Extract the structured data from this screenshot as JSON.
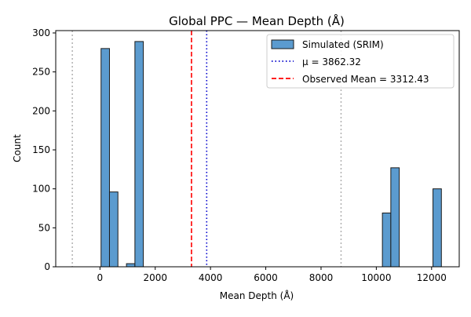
{
  "chart_data": {
    "type": "bar",
    "title": "Global PPC — Mean Depth (Å)",
    "xlabel": "Mean Depth (Å)",
    "ylabel": "Count",
    "xlim": [
      -1600,
      13000
    ],
    "ylim": [
      0,
      303
    ],
    "xticks": [
      0,
      2000,
      4000,
      6000,
      8000,
      10000,
      12000
    ],
    "yticks": [
      0,
      50,
      100,
      150,
      200,
      250,
      300
    ],
    "bin_width": 305,
    "bins": [
      {
        "x0": 40,
        "x1": 345,
        "count": 280
      },
      {
        "x0": 345,
        "x1": 650,
        "count": 96
      },
      {
        "x0": 960,
        "x1": 1265,
        "count": 4
      },
      {
        "x0": 1265,
        "x1": 1570,
        "count": 289
      },
      {
        "x0": 10220,
        "x1": 10525,
        "count": 69
      },
      {
        "x0": 10525,
        "x1": 10830,
        "count": 127
      },
      {
        "x0": 12050,
        "x1": 12355,
        "count": 100
      }
    ],
    "series": [
      {
        "name": "Simulated (SRIM)",
        "color": "#5b9bcf"
      }
    ],
    "mean_line": {
      "label": "μ = 3862.32",
      "x": 3862.32,
      "color": "#0000cc",
      "style": "dotted"
    },
    "observed_line": {
      "label": "Observed Mean = 3312.43",
      "x": 3312.43,
      "color": "#ff0000",
      "style": "dashed"
    },
    "sigma_lines": {
      "x": [
        -1000,
        8724
      ],
      "color": "#b0b0b0",
      "style": "dotted"
    },
    "legend_position": "top-right",
    "grid": false
  }
}
